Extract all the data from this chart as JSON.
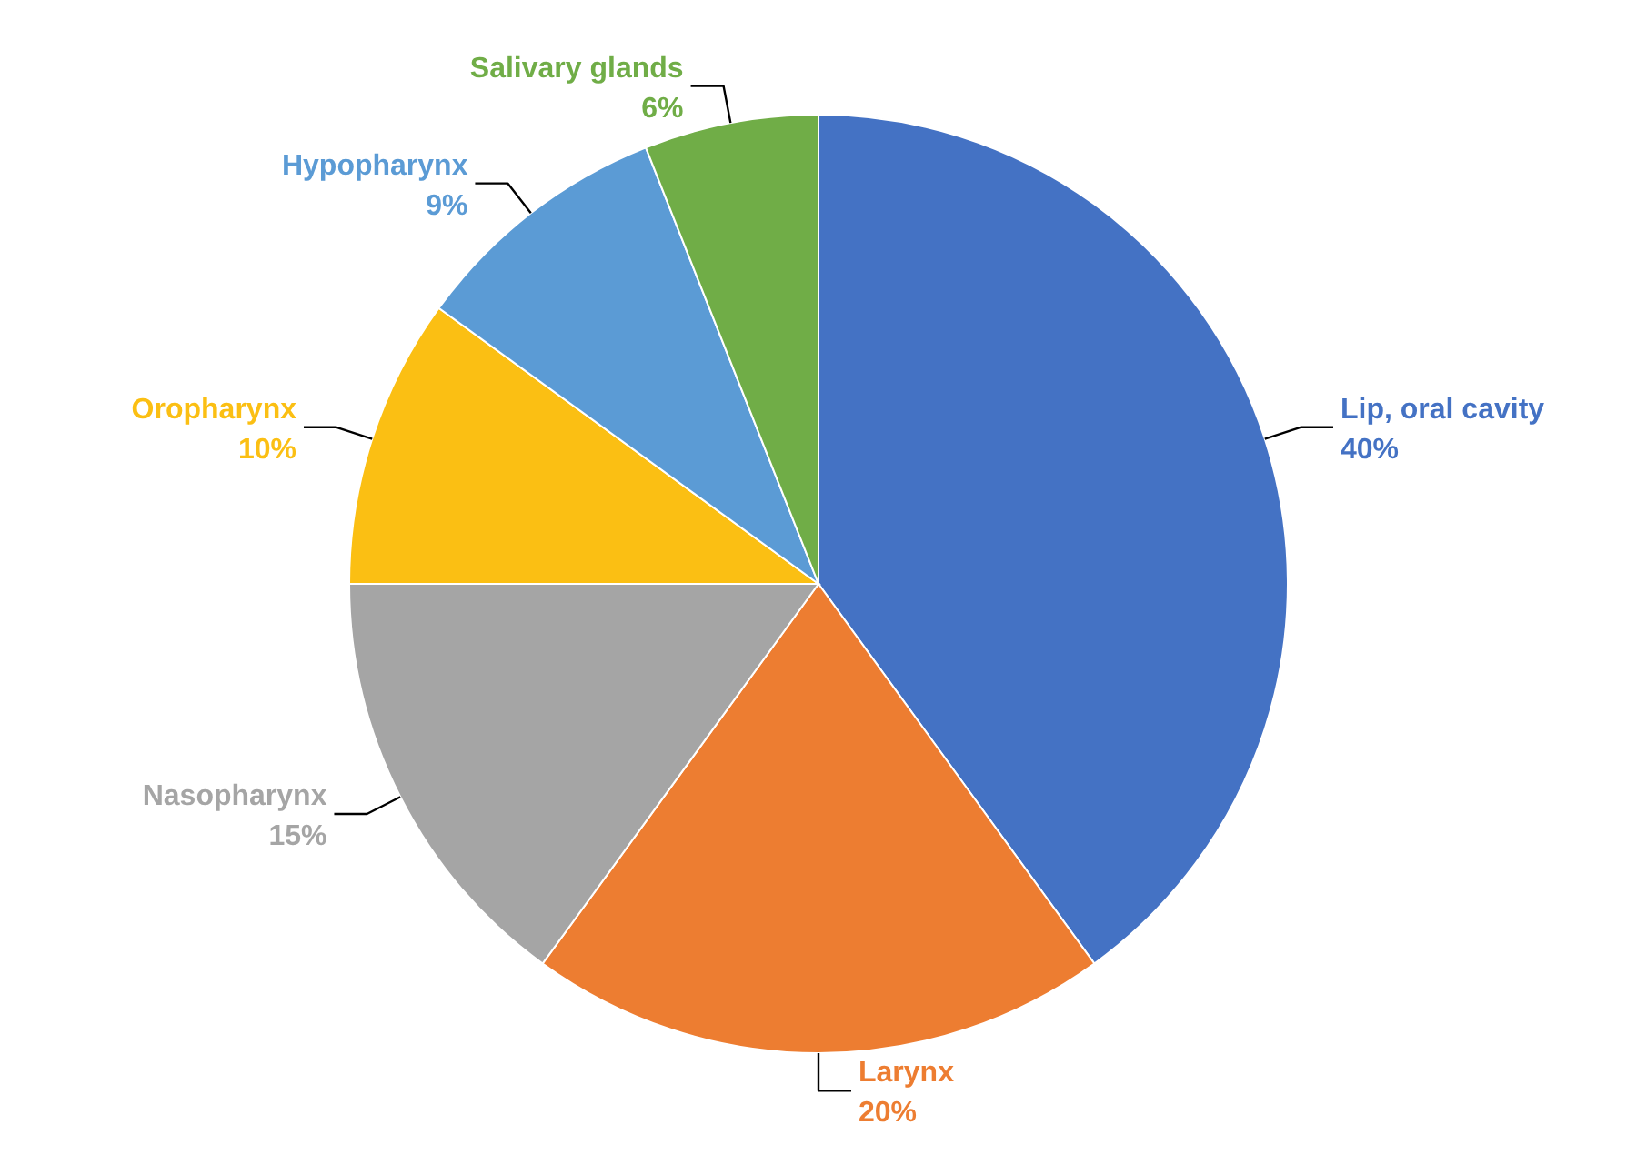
{
  "chart_data": {
    "type": "pie",
    "categories": [
      "Lip, oral cavity",
      "Larynx",
      "Nasopharynx",
      "Oropharynx",
      "Hypopharynx",
      "Salivary glands"
    ],
    "values": [
      40,
      20,
      15,
      10,
      9,
      6
    ],
    "colors": [
      "#4472c4",
      "#ed7d31",
      "#a5a5a5",
      "#fbbf13",
      "#5b9bd5",
      "#70ad47"
    ],
    "value_labels": [
      "40%",
      "20%",
      "15%",
      "10%",
      "9%",
      "6%"
    ]
  }
}
